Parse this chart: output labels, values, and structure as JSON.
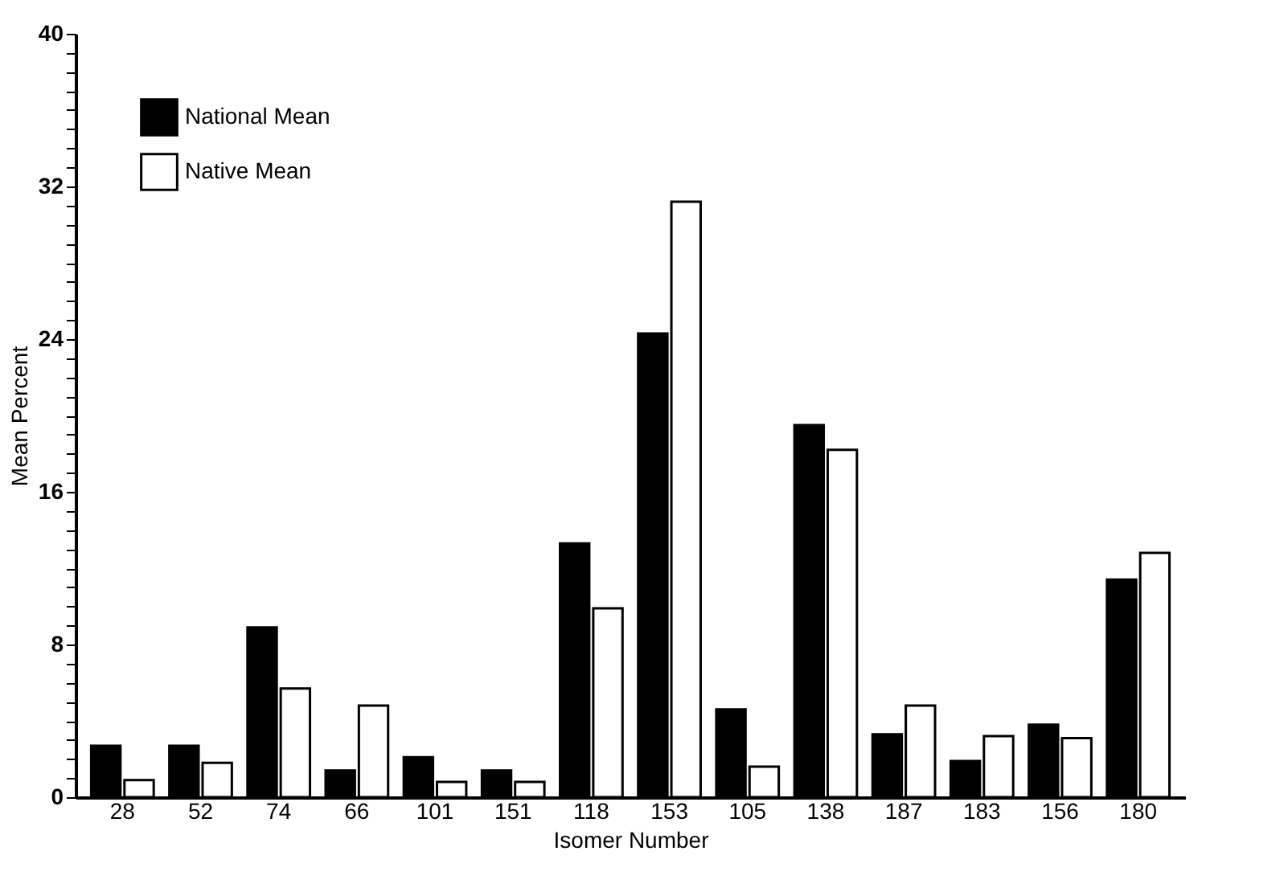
{
  "chart_data": {
    "type": "bar",
    "xlabel": "Isomer Number",
    "ylabel": "Mean Percent",
    "categories": [
      "28",
      "52",
      "74",
      "66",
      "101",
      "151",
      "118",
      "153",
      "105",
      "138",
      "187",
      "183",
      "156",
      "180"
    ],
    "series": [
      {
        "name": "National Mean",
        "color": "#000000",
        "values": [
          2.7,
          2.7,
          8.9,
          1.4,
          2.1,
          1.4,
          13.3,
          24.3,
          4.6,
          19.5,
          3.3,
          1.9,
          3.8,
          11.4
        ]
      },
      {
        "name": "Native Mean",
        "color": "#ffffff",
        "values": [
          0.9,
          1.8,
          5.7,
          4.8,
          0.8,
          0.8,
          9.9,
          31.2,
          1.6,
          18.2,
          4.8,
          3.2,
          3.1,
          12.8
        ]
      }
    ],
    "ylim": [
      0,
      40
    ],
    "yticks": [
      0,
      {
        "value": 1,
        "label": null
      },
      {
        "value": 2,
        "label": null
      },
      {
        "value": 3,
        "label": null
      },
      {
        "value": 4,
        "label": null
      },
      {
        "value": 5,
        "label": null
      },
      {
        "value": 6,
        "label": null
      },
      {
        "value": 7,
        "label": null
      },
      8,
      {
        "value": 9,
        "label": null
      },
      {
        "value": 10,
        "label": null
      },
      {
        "value": 11,
        "label": null
      },
      {
        "value": 12,
        "label": null
      },
      {
        "value": 13,
        "label": null
      },
      {
        "value": 14,
        "label": null
      },
      {
        "value": 15,
        "label": null
      },
      16,
      {
        "value": 17,
        "label": null
      },
      {
        "value": 18,
        "label": null
      },
      {
        "value": 19,
        "label": null
      },
      {
        "value": 20,
        "label": null
      },
      {
        "value": 21,
        "label": null
      },
      {
        "value": 22,
        "label": null
      },
      {
        "value": 23,
        "label": null
      },
      24,
      {
        "value": 25,
        "label": null
      },
      {
        "value": 26,
        "label": null
      },
      {
        "value": 27,
        "label": null
      },
      {
        "value": 28,
        "label": null
      },
      {
        "value": 29,
        "label": null
      },
      {
        "value": 30,
        "label": null
      },
      {
        "value": 31,
        "label": null
      },
      32,
      {
        "value": 33,
        "label": null
      },
      {
        "value": 34,
        "label": null
      },
      {
        "value": 35,
        "label": null
      },
      {
        "value": 36,
        "label": null
      },
      {
        "value": 37,
        "label": null
      },
      {
        "value": 38,
        "label": null
      },
      {
        "value": 39,
        "label": null
      },
      40
    ],
    "grid": false,
    "legend": "top left"
  }
}
